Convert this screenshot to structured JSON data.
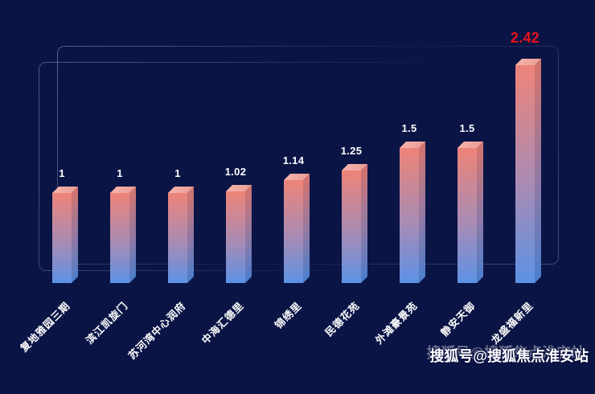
{
  "chart_data": {
    "type": "bar",
    "variant": "3d-gradient-columns",
    "title": "",
    "xlabel": "",
    "ylabel": "",
    "grid": false,
    "legend": null,
    "axes_visible": false,
    "ylim": [
      0,
      2.6
    ],
    "categories": [
      "复地雅园三期",
      "滨江凯旋门",
      "苏河湾中心润府",
      "中海汇德里",
      "锦绣里",
      "民德花苑",
      "外滩豪景苑",
      "静安天御",
      "龙盛福新里"
    ],
    "values": [
      1,
      1,
      1,
      1.02,
      1.14,
      1.25,
      1.5,
      1.5,
      2.42
    ],
    "value_labels": [
      "1",
      "1",
      "1",
      "1.02",
      "1.14",
      "1.25",
      "1.5",
      "1.5",
      "2.42"
    ],
    "highlight_index": 8,
    "colors": {
      "background": "#0A1445",
      "bar_top": "#EE8478",
      "bar_mid": "#A98BB4",
      "bar_bottom": "#5C92E4",
      "bar_side_top": "#D4746E",
      "bar_side_mid": "#8F7AA6",
      "bar_side_bottom": "#4C7ECC",
      "bar_cap_light": "#F5B5AE",
      "bar_cap_dark": "#EA9C95",
      "value_label": "#FFFFFF",
      "highlight_value_label": "#E8121A"
    }
  },
  "watermark": {
    "text": "搜狐号@搜狐焦点淮安站"
  }
}
